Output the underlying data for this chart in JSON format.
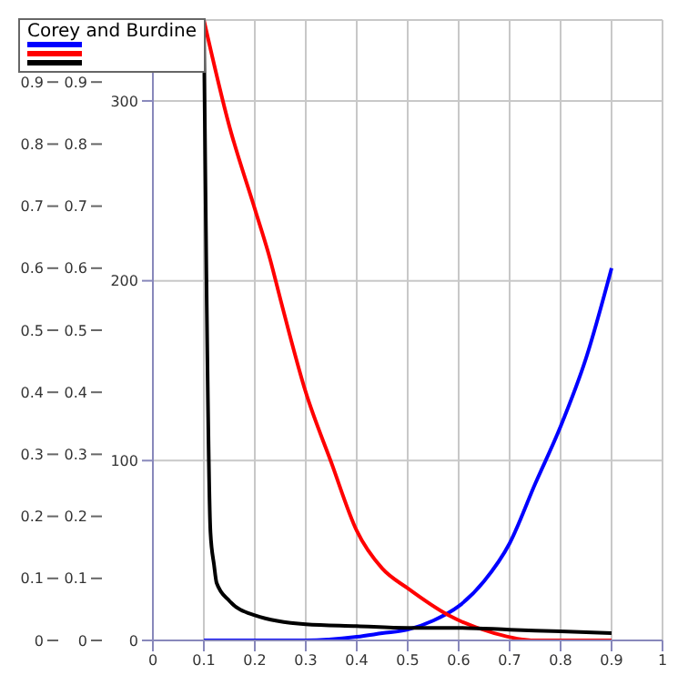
{
  "chart_data": {
    "type": "line",
    "legend_title": "Corey and Burdine",
    "grid": true,
    "marker": "none",
    "line_style": "solid",
    "xlim": [
      0,
      1
    ],
    "xticks": [
      0,
      0.1,
      0.2,
      0.3,
      0.4,
      0.5,
      0.6,
      0.7,
      0.8,
      0.9,
      1
    ],
    "ylim": [
      0,
      345
    ],
    "yticks": [
      0,
      100,
      200,
      300
    ],
    "y2lim": [
      0,
      1
    ],
    "y2ticks": [
      0,
      0.1,
      0.2,
      0.3,
      0.4,
      0.5,
      0.6,
      0.7,
      0.8,
      0.9
    ],
    "y3lim": [
      0,
      1
    ],
    "y3ticks": [
      0,
      0.1,
      0.2,
      0.3,
      0.4,
      0.5,
      0.6,
      0.7,
      0.8,
      0.9
    ],
    "series": [
      {
        "color": "#0000ff",
        "x": [
          0.1,
          0.2,
          0.3,
          0.4,
          0.45,
          0.5,
          0.55,
          0.6,
          0.65,
          0.7,
          0.75,
          0.8,
          0.85,
          0.9
        ],
        "values": [
          0,
          0,
          0,
          2,
          4,
          6,
          11,
          19,
          33,
          54,
          87,
          119,
          157,
          207
        ]
      },
      {
        "color": "#ff0000",
        "x": [
          0.1,
          0.15,
          0.2,
          0.23,
          0.25,
          0.3,
          0.35,
          0.4,
          0.45,
          0.5,
          0.58,
          0.67,
          0.75,
          0.8,
          0.9
        ],
        "values": [
          345,
          286,
          240,
          212,
          190,
          138,
          99,
          61,
          40,
          29,
          14,
          4,
          0,
          0,
          0
        ]
      },
      {
        "color": "#000000",
        "x": [
          0.1,
          0.113,
          0.12,
          0.125,
          0.15,
          0.2,
          0.3,
          0.4,
          0.5,
          0.6,
          0.7,
          0.8,
          0.9
        ],
        "values": [
          345,
          60,
          42,
          32,
          22,
          14,
          9,
          8,
          7,
          7,
          6,
          5,
          4
        ]
      }
    ]
  }
}
